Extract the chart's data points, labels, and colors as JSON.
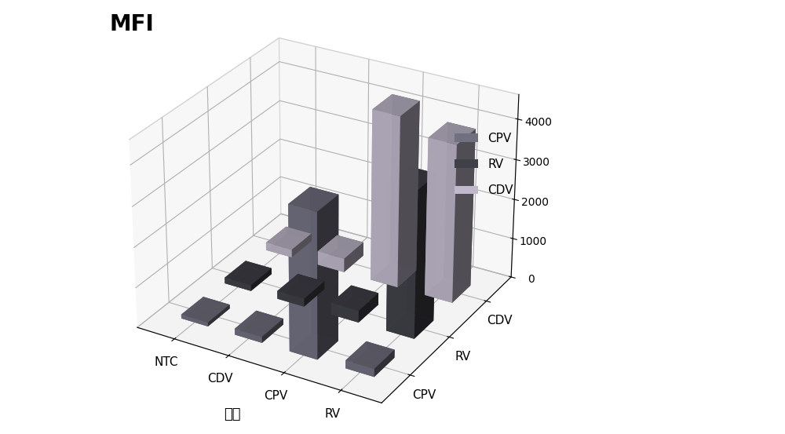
{
  "mfi_label": "MFI",
  "xlabel": "三重",
  "x_labels": [
    "NTC",
    "CDV",
    "CPV",
    "RV"
  ],
  "y_labels": [
    "CPV",
    "RV",
    "CDV"
  ],
  "legend_labels": [
    "CPV",
    "RV",
    "CDV"
  ],
  "bar_colors": [
    "#717080",
    "#404048",
    "#c0b8cc"
  ],
  "bar_data": {
    "NTC": {
      "CPV": 100,
      "RV": 150,
      "CDV": 200
    },
    "CDV": {
      "CPV": 150,
      "RV": 200,
      "CDV": 350
    },
    "CPV": {
      "CPV": 3600,
      "RV": 300,
      "CDV": 4300
    },
    "RV": {
      "CPV": 200,
      "RV": 3650,
      "CDV": 3950
    }
  },
  "ylim": [
    0,
    4600
  ],
  "yticks": [
    0,
    1000,
    2000,
    3000,
    4000
  ],
  "background_color": "#ffffff",
  "figsize": [
    10.0,
    5.53
  ],
  "dpi": 100,
  "elev": 28,
  "azim": -60
}
